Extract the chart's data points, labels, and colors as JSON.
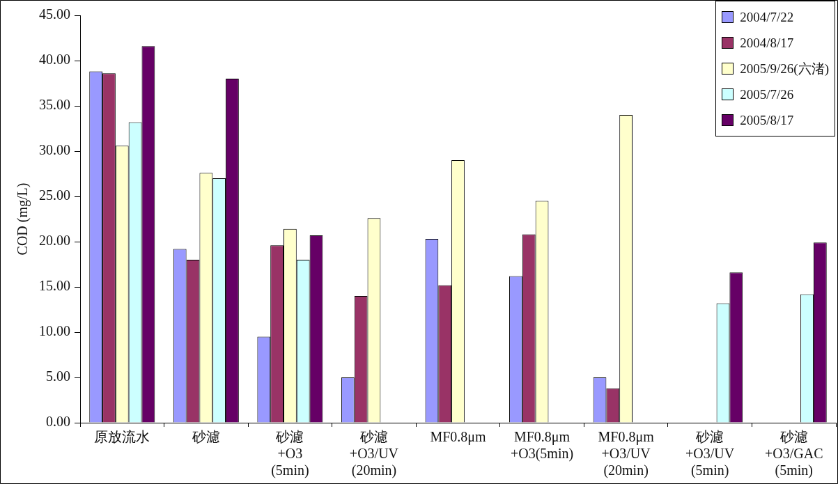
{
  "chart_data": {
    "type": "bar",
    "ylabel": "COD (mg/L)",
    "categories": [
      "原放流水",
      "砂濾",
      "砂濾\n+O3\n(5min)",
      "砂濾\n+O3/UV\n(20min)",
      "MF0.8μm",
      "MF0.8μm\n+O3(5min)",
      "MF0.8μm\n+O3/UV\n(20min)",
      "砂濾\n+O3/UV\n(5min)",
      "砂濾\n+O3/GAC\n(5min)"
    ],
    "series": [
      {
        "name": "2004/7/22",
        "color": "#9999ff",
        "values": [
          38.8,
          19.2,
          9.5,
          5.0,
          20.3,
          16.2,
          5.0,
          null,
          null
        ]
      },
      {
        "name": "2004/8/17",
        "color": "#993366",
        "values": [
          38.6,
          18.0,
          19.6,
          14.0,
          15.2,
          20.8,
          3.8,
          null,
          null
        ]
      },
      {
        "name": "2005/9/26(六渚)",
        "color": "#ffffcc",
        "values": [
          30.6,
          27.6,
          21.4,
          22.6,
          29.0,
          24.5,
          34.0,
          null,
          null
        ]
      },
      {
        "name": "2005/7/26",
        "color": "#ccffff",
        "values": [
          33.2,
          27.0,
          18.0,
          null,
          null,
          null,
          null,
          13.2,
          14.2
        ]
      },
      {
        "name": "2005/8/17",
        "color": "#660066",
        "values": [
          41.6,
          38.0,
          20.7,
          null,
          null,
          null,
          null,
          16.6,
          19.9
        ]
      }
    ],
    "ylim": [
      0,
      45
    ],
    "yticks": [
      {
        "value": 0,
        "label": "0.00"
      },
      {
        "value": 5,
        "label": "5.00"
      },
      {
        "value": 10,
        "label": "10.00"
      },
      {
        "value": 15,
        "label": "15.00"
      },
      {
        "value": 20,
        "label": "20.00"
      },
      {
        "value": 25,
        "label": "25.00"
      },
      {
        "value": 30,
        "label": "30.00"
      },
      {
        "value": 35,
        "label": "35.00"
      },
      {
        "value": 40,
        "label": "40.00"
      },
      {
        "value": 45,
        "label": "45.00"
      }
    ],
    "grid": false,
    "legend": "top right"
  }
}
